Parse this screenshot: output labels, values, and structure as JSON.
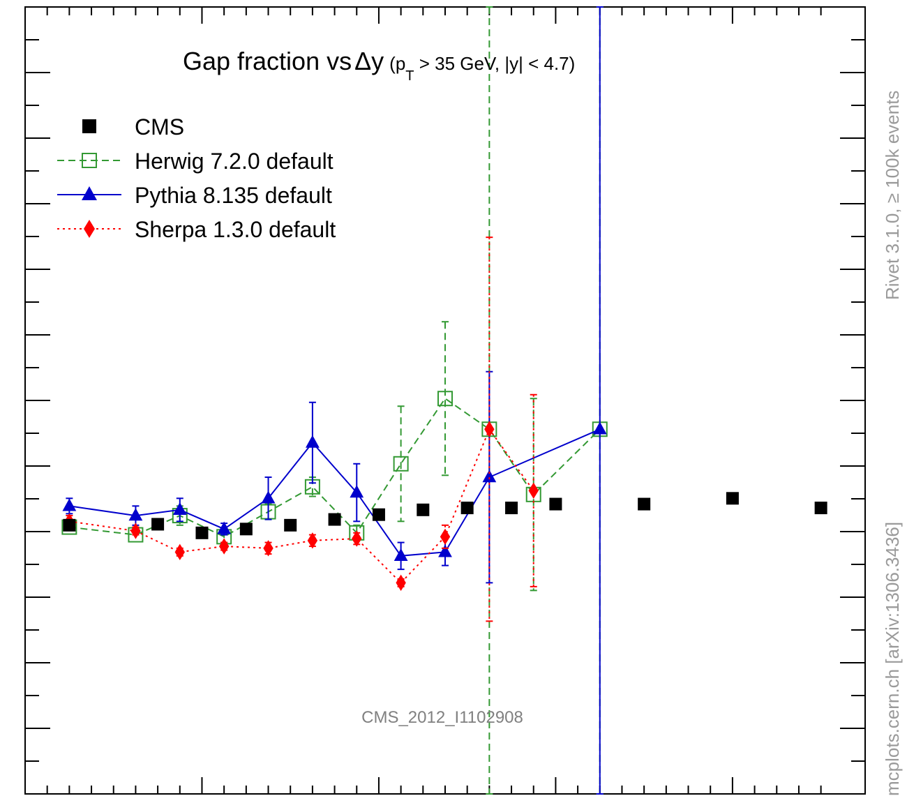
{
  "chart_data": {
    "type": "scatter",
    "title": "Gap fraction vs",
    "title_symbol": "Δy",
    "title_cuts_prefix": "(p",
    "title_cuts_subscript": "T",
    "title_cuts_suffix": " > 35 GeV, |y| < 4.7)",
    "watermark": "CMS_2012_I1102908",
    "xlabel": "",
    "ylabel": "",
    "grid": false,
    "legend_position": "top-left",
    "series": [
      {
        "name": "CMS",
        "color": "#000000",
        "marker": "filled-square",
        "line": "none",
        "points": [
          {
            "x": 0.25,
            "y": 0.5,
            "err": 0.0
          },
          {
            "x": 0.75,
            "y": 0.505,
            "err": 0.0
          },
          {
            "x": 1.0,
            "y": 0.46,
            "err": 0.0
          },
          {
            "x": 1.25,
            "y": 0.48,
            "err": 0.0
          },
          {
            "x": 1.5,
            "y": 0.5,
            "err": 0.0
          },
          {
            "x": 1.75,
            "y": 0.53,
            "err": 0.0
          },
          {
            "x": 2.0,
            "y": 0.555,
            "err": 0.0
          },
          {
            "x": 2.25,
            "y": 0.58,
            "err": 0.0
          },
          {
            "x": 2.5,
            "y": 0.59,
            "err": 0.0
          },
          {
            "x": 2.75,
            "y": 0.59,
            "err": 0.0
          },
          {
            "x": 3.0,
            "y": 0.61,
            "err": 0.0
          },
          {
            "x": 3.5,
            "y": 0.61,
            "err": 0.0
          },
          {
            "x": 4.0,
            "y": 0.64,
            "err": 0.0
          },
          {
            "x": 4.5,
            "y": 0.59,
            "err": 0.0
          }
        ]
      },
      {
        "name": "Herwig 7.2.0 default",
        "color": "#339933",
        "marker": "open-square",
        "line": "dashed",
        "points": [
          {
            "x": 0.25,
            "y": 0.49,
            "err": 0.0
          },
          {
            "x": 0.625,
            "y": 0.45,
            "err": 0.0
          },
          {
            "x": 0.875,
            "y": 0.55,
            "err": 0.05
          },
          {
            "x": 1.125,
            "y": 0.44,
            "err": 0.03
          },
          {
            "x": 1.375,
            "y": 0.57,
            "err": 0.04
          },
          {
            "x": 1.625,
            "y": 0.7,
            "err": 0.05
          },
          {
            "x": 1.875,
            "y": 0.46,
            "err": 0.04
          },
          {
            "x": 2.125,
            "y": 0.82,
            "err": 0.3
          },
          {
            "x": 2.375,
            "y": 1.16,
            "err": 0.4
          },
          {
            "x": 2.625,
            "y": 1.0,
            "err": 2.5
          },
          {
            "x": 2.875,
            "y": 0.66,
            "err": 0.5
          },
          {
            "x": 3.25,
            "y": 1.0,
            "err": 3.0
          }
        ]
      },
      {
        "name": "Pythia 8.135 default",
        "color": "#0000cc",
        "marker": "filled-triangle",
        "line": "solid",
        "points": [
          {
            "x": 0.25,
            "y": 0.6,
            "err": 0.04
          },
          {
            "x": 0.625,
            "y": 0.55,
            "err": 0.05
          },
          {
            "x": 0.875,
            "y": 0.58,
            "err": 0.06
          },
          {
            "x": 1.125,
            "y": 0.48,
            "err": 0.03
          },
          {
            "x": 1.375,
            "y": 0.64,
            "err": 0.11
          },
          {
            "x": 1.625,
            "y": 0.93,
            "err": 0.21
          },
          {
            "x": 1.875,
            "y": 0.67,
            "err": 0.15
          },
          {
            "x": 2.125,
            "y": 0.34,
            "err": 0.07
          },
          {
            "x": 2.375,
            "y": 0.36,
            "err": 0.07
          },
          {
            "x": 2.625,
            "y": 0.75,
            "err": 0.55
          },
          {
            "x": 3.25,
            "y": 1.0,
            "err": 2.5
          }
        ]
      },
      {
        "name": "Sherpa 1.3.0 default",
        "color": "#ff0000",
        "marker": "filled-diamond",
        "line": "dotted",
        "points": [
          {
            "x": 0.25,
            "y": 0.52,
            "err": 0.03
          },
          {
            "x": 0.625,
            "y": 0.47,
            "err": 0.02
          },
          {
            "x": 0.875,
            "y": 0.36,
            "err": 0.02
          },
          {
            "x": 1.125,
            "y": 0.39,
            "err": 0.02
          },
          {
            "x": 1.375,
            "y": 0.38,
            "err": 0.03
          },
          {
            "x": 1.625,
            "y": 0.42,
            "err": 0.03
          },
          {
            "x": 1.875,
            "y": 0.43,
            "err": 0.03
          },
          {
            "x": 2.125,
            "y": 0.2,
            "err": 0.02
          },
          {
            "x": 2.375,
            "y": 0.44,
            "err": 0.06
          },
          {
            "x": 2.625,
            "y": 1.0,
            "err": 1.0
          },
          {
            "x": 2.875,
            "y": 0.68,
            "err": 0.5
          }
        ]
      }
    ],
    "xlim": [
      0,
      4.75
    ],
    "ylim": [
      -0.9,
      3.2
    ]
  },
  "side_labels": {
    "top": "Rivet 3.1.0, ≥ 100k events",
    "bottom": "mcplots.cern.ch [arXiv:1306.3436]"
  },
  "colors": {
    "frame": "#000000",
    "side_label": "#9a9a9a",
    "watermark": "#808080"
  }
}
